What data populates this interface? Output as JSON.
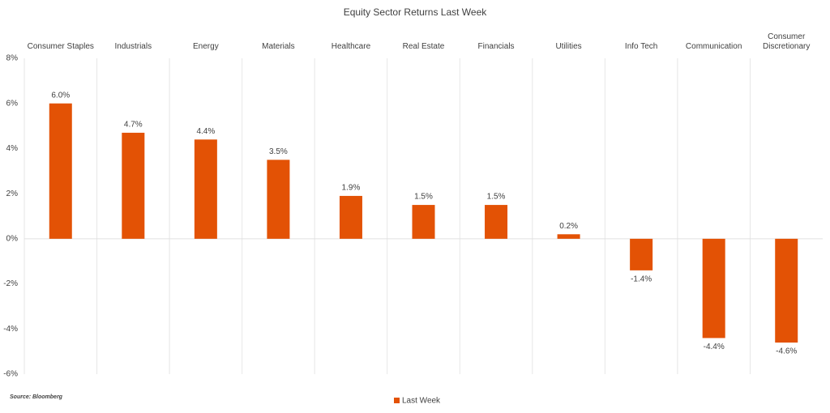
{
  "chart_data": {
    "type": "bar",
    "title": "Equity Sector Returns Last Week",
    "source": "Source: Bloomberg",
    "categories": [
      "Consumer Staples",
      "Industrials",
      "Energy",
      "Materials",
      "Healthcare",
      "Real Estate",
      "Financials",
      "Utilities",
      "Info Tech",
      "Communication",
      "Consumer Discretionary"
    ],
    "series": [
      {
        "name": "Last Week",
        "color": "#e35205",
        "values": [
          6.0,
          4.7,
          4.4,
          3.5,
          1.9,
          1.5,
          1.5,
          0.2,
          -1.4,
          -4.4,
          -4.6
        ],
        "value_labels": [
          "6.0%",
          "4.7%",
          "4.4%",
          "3.5%",
          "1.9%",
          "1.5%",
          "1.5%",
          "0.2%",
          "-1.4%",
          "-4.4%",
          "-4.6%"
        ]
      }
    ],
    "ylim": [
      -6,
      8
    ],
    "yticks": [
      {
        "value": -6,
        "label": "-6%"
      },
      {
        "value": -4,
        "label": "-4%"
      },
      {
        "value": -2,
        "label": "-2%"
      },
      {
        "value": 0,
        "label": "0%"
      },
      {
        "value": 2,
        "label": "2%"
      },
      {
        "value": 4,
        "label": "4%"
      },
      {
        "value": 6,
        "label": "6%"
      },
      {
        "value": 8,
        "label": "8%"
      }
    ],
    "legend": "bottom"
  }
}
